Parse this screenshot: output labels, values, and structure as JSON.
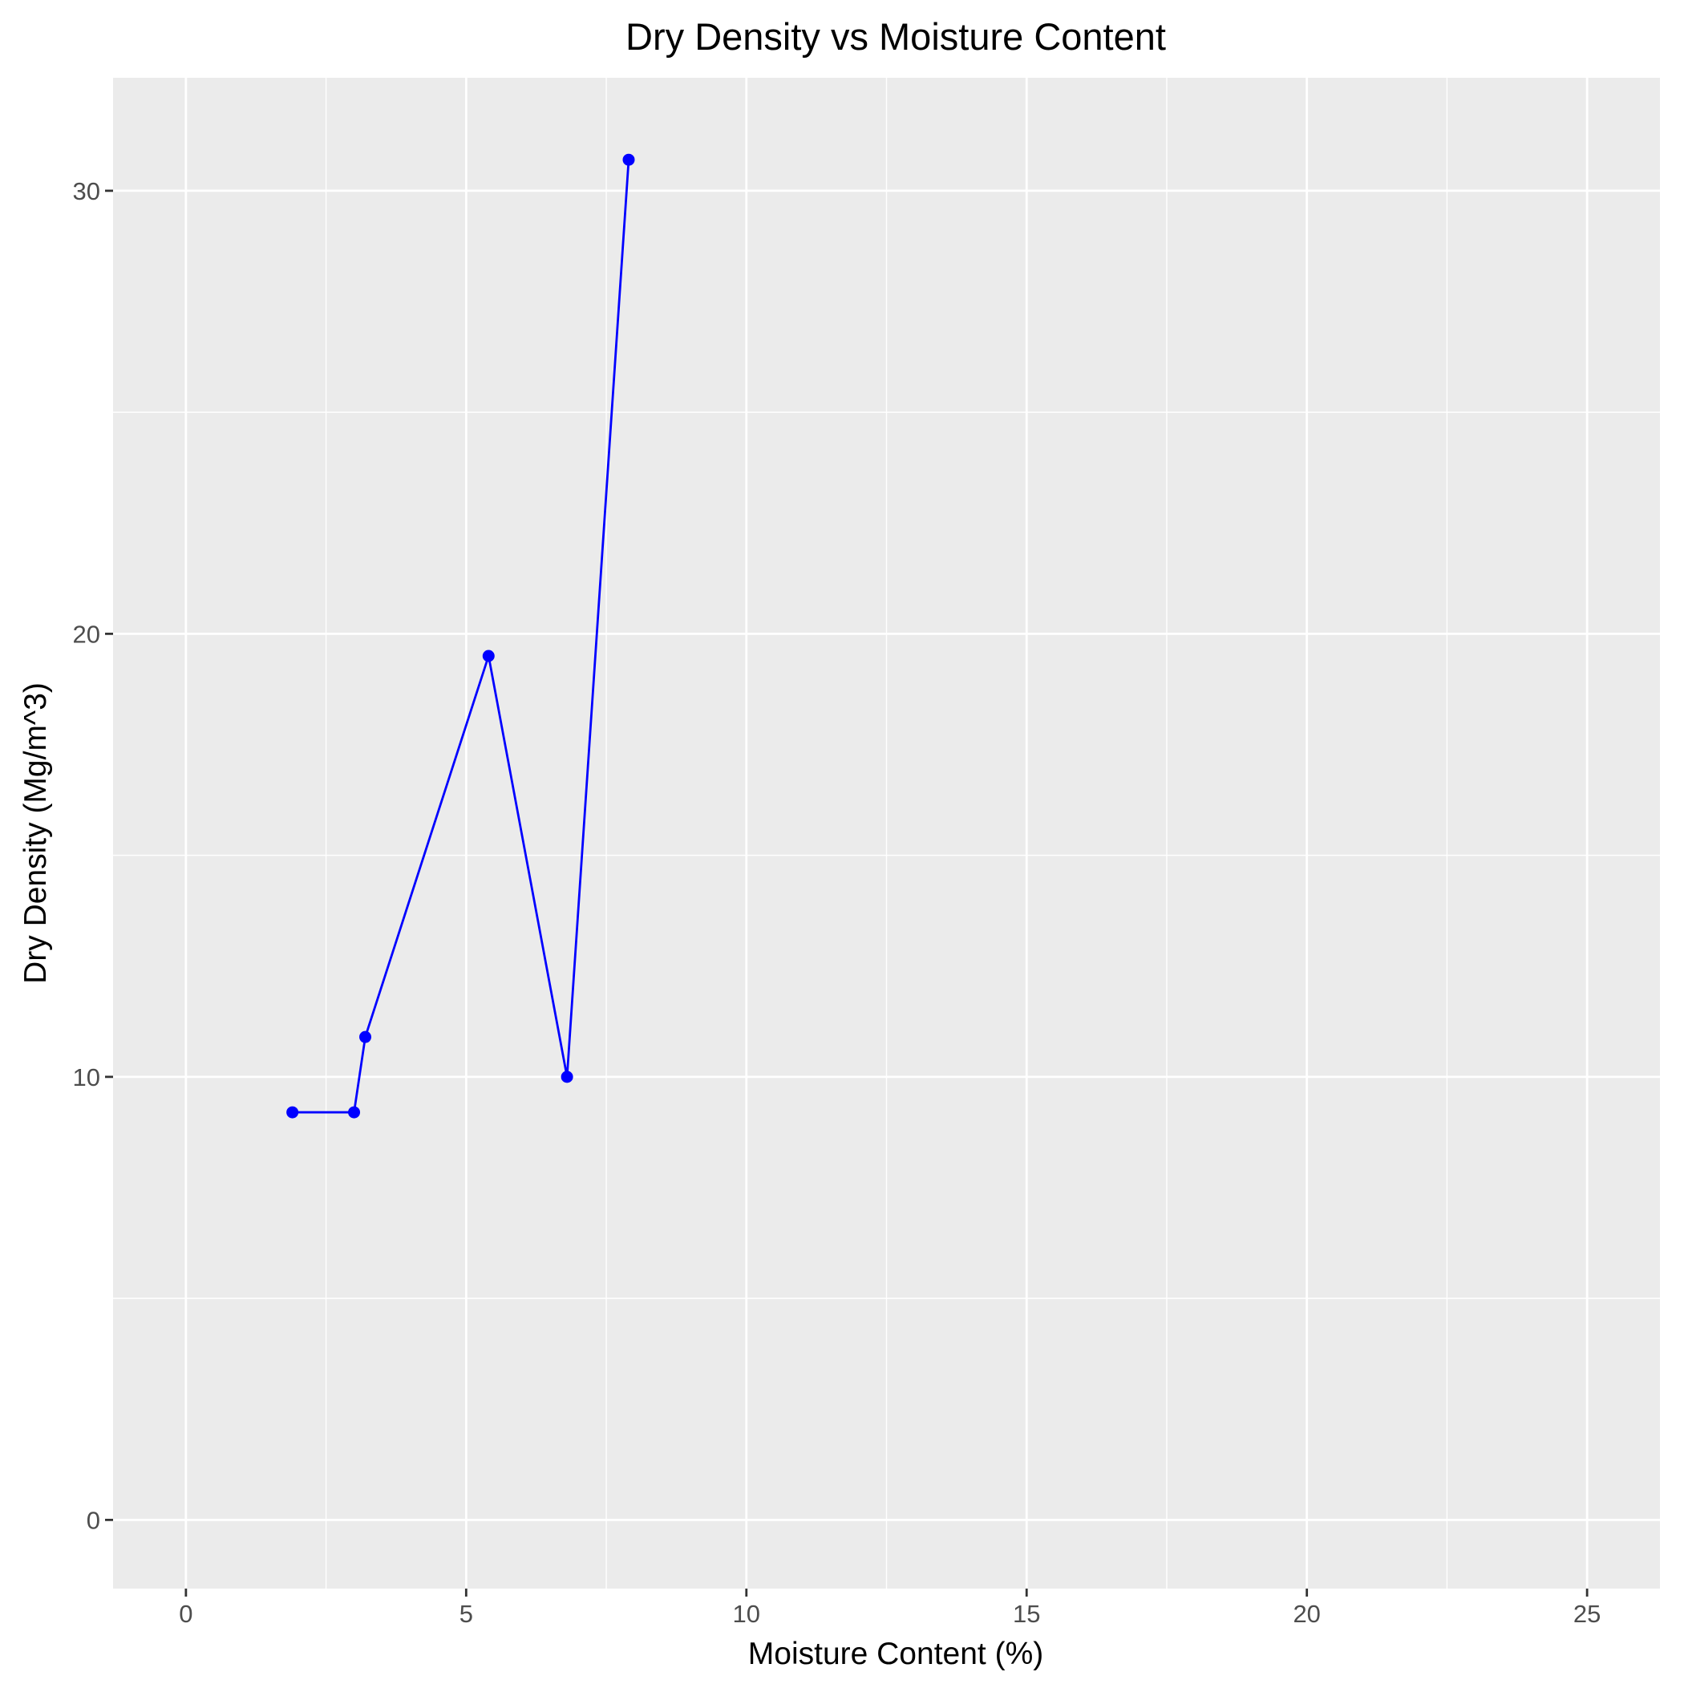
{
  "chart_data": {
    "type": "line",
    "title": "Dry Density vs Moisture Content",
    "xlabel": "Moisture Content (%)",
    "ylabel": "Dry Density (Mg/m^3)",
    "xlim": [
      -1.3,
      26.3
    ],
    "ylim": [
      -1.55,
      32.55
    ],
    "x_ticks": [
      0,
      5,
      10,
      15,
      20,
      25
    ],
    "x_minor_ticks": [
      2.5,
      7.5,
      12.5,
      17.5,
      22.5
    ],
    "y_ticks": [
      0,
      10,
      20,
      30
    ],
    "y_minor_ticks": [
      5,
      15,
      25
    ],
    "x_tick_labels": [
      "0",
      "5",
      "10",
      "15",
      "20",
      "25"
    ],
    "y_tick_labels": [
      "0",
      "10",
      "20",
      "30"
    ],
    "grid": true,
    "legend": "none",
    "series": [
      {
        "color": "#0000FF",
        "marker": "circle",
        "x": [
          1.9,
          3.0,
          3.2,
          5.4,
          6.8,
          7.9
        ],
        "y": [
          9.2,
          9.2,
          10.9,
          19.5,
          10.0,
          30.7
        ]
      }
    ]
  }
}
